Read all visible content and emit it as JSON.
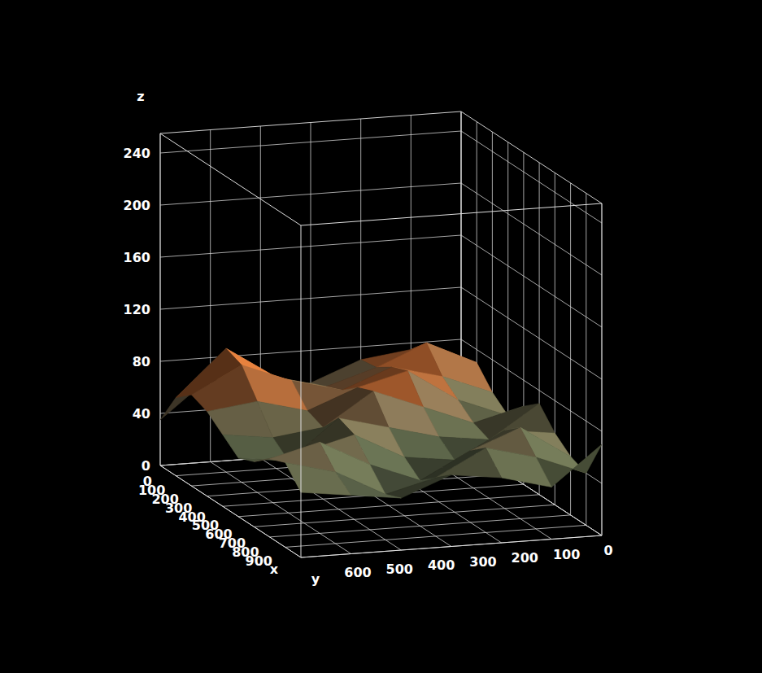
{
  "chart_data": {
    "type": "surface",
    "x_label": "x",
    "y_label": "y",
    "z_label": "z",
    "x": [
      0,
      100,
      200,
      300,
      400,
      500,
      600,
      700,
      800,
      900
    ],
    "y": [
      0,
      100,
      200,
      300,
      400,
      500,
      600
    ],
    "z": [
      [
        60,
        75,
        70,
        55,
        50,
        65,
        35
      ],
      [
        70,
        88,
        72,
        60,
        70,
        95,
        60
      ],
      [
        55,
        70,
        80,
        65,
        75,
        90,
        70
      ],
      [
        45,
        60,
        85,
        75,
        60,
        70,
        65
      ],
      [
        60,
        50,
        65,
        80,
        55,
        50,
        55
      ],
      [
        70,
        45,
        50,
        60,
        70,
        40,
        45
      ],
      [
        55,
        60,
        40,
        45,
        65,
        55,
        50
      ],
      [
        45,
        70,
        55,
        35,
        50,
        70,
        60
      ],
      [
        40,
        55,
        65,
        45,
        35,
        55,
        65
      ],
      [
        70,
        40,
        50,
        55,
        40,
        45,
        50
      ]
    ],
    "xlim": [
      0,
      900
    ],
    "ylim": [
      0,
      600
    ],
    "zlim": [
      0,
      255
    ],
    "xticks": [
      0,
      100,
      200,
      300,
      400,
      500,
      600,
      700,
      800,
      900
    ],
    "yticks": [
      0,
      100,
      200,
      300,
      400,
      500,
      600
    ],
    "zticks": [
      0,
      40,
      80,
      120,
      160,
      200,
      240
    ],
    "grid": true
  }
}
